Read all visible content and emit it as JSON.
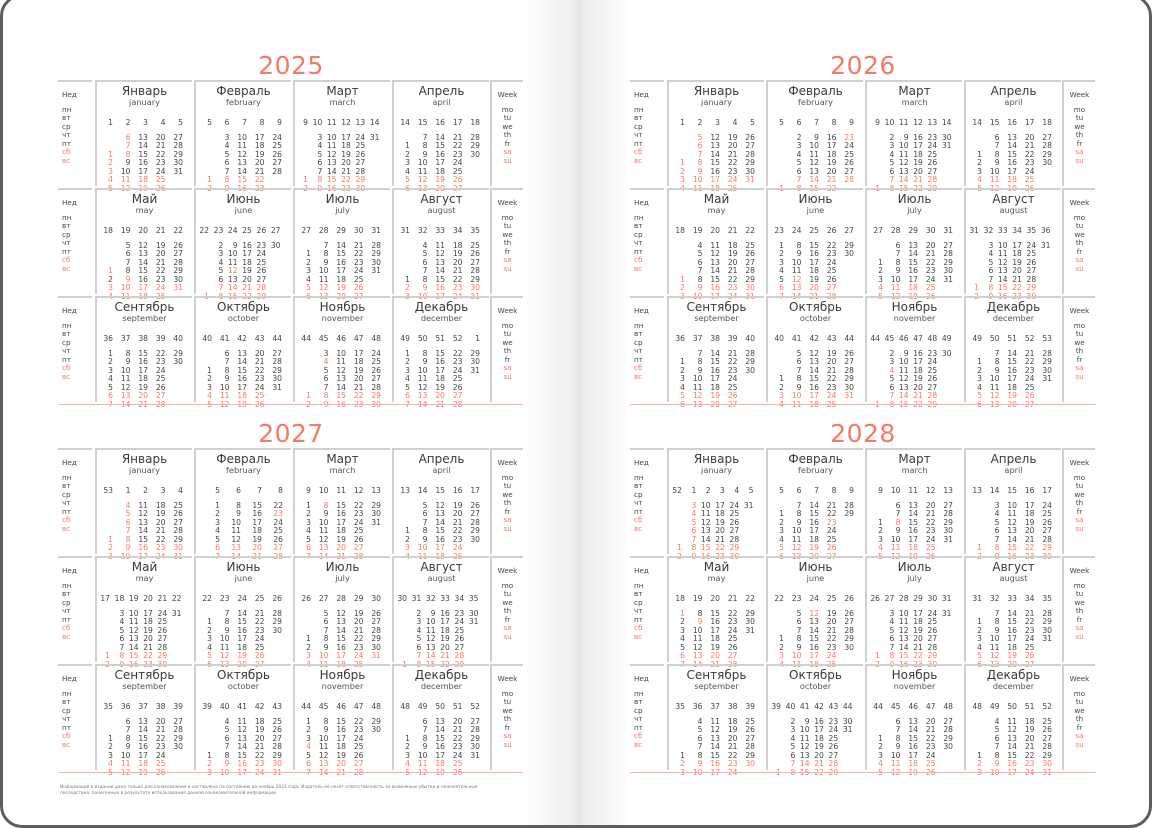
{
  "colors": {
    "accent": "#f47a66",
    "text": "#444444",
    "rule": "#d0d0d0",
    "frame": "#5d5d5d"
  },
  "labels": {
    "week_ru": "Нед",
    "days_ru": [
      "пн",
      "вт",
      "ср",
      "чт",
      "пт",
      "сб",
      "вс"
    ],
    "week_en": "Week",
    "days_en": [
      "mo",
      "tu",
      "we",
      "th",
      "fr",
      "sa",
      "su"
    ]
  },
  "months": [
    {
      "ru": "Январь",
      "en": "january"
    },
    {
      "ru": "Февраль",
      "en": "february"
    },
    {
      "ru": "Март",
      "en": "march"
    },
    {
      "ru": "Апрель",
      "en": "april"
    },
    {
      "ru": "Май",
      "en": "may"
    },
    {
      "ru": "Июнь",
      "en": "june"
    },
    {
      "ru": "Июль",
      "en": "july"
    },
    {
      "ru": "Август",
      "en": "august"
    },
    {
      "ru": "Сентябрь",
      "en": "september"
    },
    {
      "ru": "Октябрь",
      "en": "october"
    },
    {
      "ru": "Ноябрь",
      "en": "november"
    },
    {
      "ru": "Декабрь",
      "en": "december"
    }
  ],
  "years": [
    {
      "year": "2025",
      "holidays": [
        "1-1",
        "1-2",
        "1-3",
        "1-6",
        "1-7",
        "1-8",
        "5-1",
        "5-9",
        "6-12",
        "11-4"
      ]
    },
    {
      "year": "2026",
      "holidays": [
        "1-1",
        "1-2",
        "1-5",
        "1-6",
        "1-7",
        "1-8",
        "1-9",
        "2-23",
        "5-1",
        "6-12",
        "11-4"
      ]
    },
    {
      "year": "2027",
      "holidays": [
        "1-1",
        "1-4",
        "1-5",
        "1-6",
        "1-7",
        "1-8",
        "2-23",
        "3-8",
        "11-4"
      ]
    },
    {
      "year": "2028",
      "holidays": [
        "1-3",
        "1-4",
        "1-5",
        "1-6",
        "1-7",
        "2-23",
        "3-8",
        "5-1",
        "5-9",
        "6-12"
      ]
    }
  ],
  "footnote": "Информация в издании дана только для ознакомления и составлена по состоянию на ноябрь 2023 года. Издатель не несет ответственность за возможные убытки и нежелательные последствия, понесенные в результате использования данной ознакомительной информации."
}
